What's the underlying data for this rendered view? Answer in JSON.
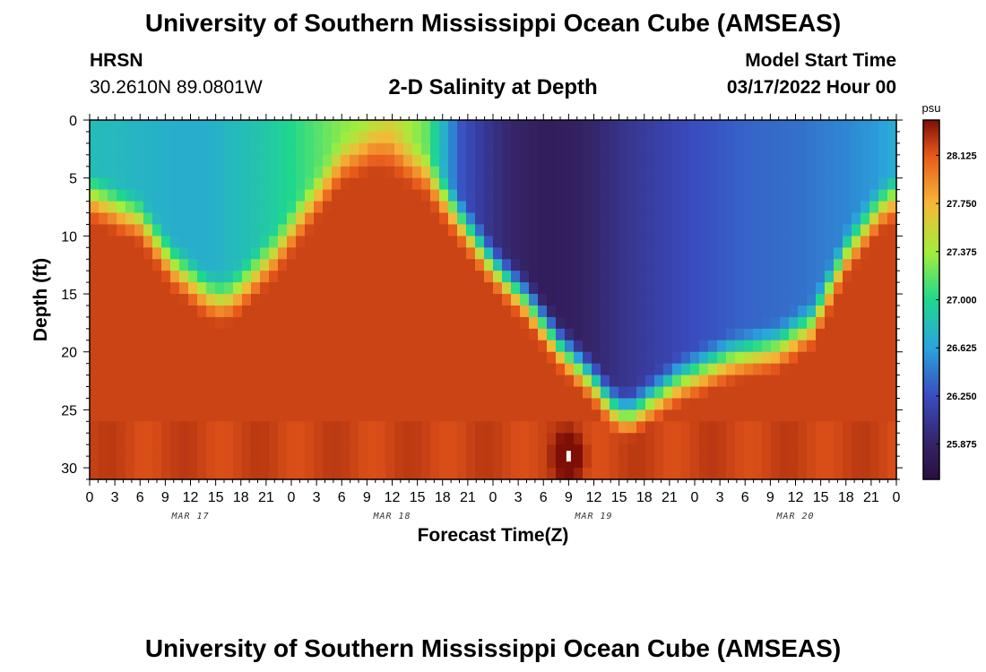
{
  "header": {
    "title": "University of Southern Mississippi Ocean Cube (AMSEAS)",
    "station": "HRSN",
    "coords": "30.2610N  89.0801W",
    "subtitle": "2-D Salinity at Depth",
    "model_start_label": "Model Start Time",
    "model_start_time": "03/17/2022 Hour 00"
  },
  "footer": {
    "title": "University of Southern Mississippi Ocean Cube (AMSEAS)"
  },
  "chart_data": {
    "type": "heatmap",
    "title": "2-D Salinity at Depth",
    "xlabel": "Forecast Time(Z)",
    "ylabel": "Depth (ft)",
    "x_hours_range": [
      0,
      96
    ],
    "y_range": [
      0,
      31
    ],
    "y_inverted": true,
    "x_tick_labels": [
      "0",
      "3",
      "6",
      "9",
      "12",
      "15",
      "18",
      "21",
      "0",
      "3",
      "6",
      "9",
      "12",
      "15",
      "18",
      "21",
      "0",
      "3",
      "6",
      "9",
      "12",
      "15",
      "18",
      "21",
      "0",
      "3",
      "6",
      "9",
      "12",
      "15",
      "18",
      "21",
      "0"
    ],
    "x_date_labels": [
      {
        "label": "MAR 17",
        "hour": 12
      },
      {
        "label": "MAR 18",
        "hour": 36
      },
      {
        "label": "MAR 19",
        "hour": 60
      },
      {
        "label": "MAR 20",
        "hour": 84
      }
    ],
    "y_ticks": [
      0,
      5,
      10,
      15,
      20,
      25,
      30
    ],
    "colorbar": {
      "unit": "psu",
      "min": 25.6,
      "max": 28.4,
      "ticks": [
        "25.875",
        "26.250",
        "26.625",
        "27.000",
        "27.375",
        "27.750",
        "28.125"
      ],
      "tick_values": [
        25.875,
        26.25,
        26.625,
        27.0,
        27.375,
        27.75,
        28.125
      ]
    },
    "color_scale": [
      {
        "v": 25.6,
        "c": "#2a0f3f"
      },
      {
        "v": 25.875,
        "c": "#352366"
      },
      {
        "v": 26.25,
        "c": "#3a4cc0"
      },
      {
        "v": 26.625,
        "c": "#2aa4dc"
      },
      {
        "v": 27.0,
        "c": "#1fd88e"
      },
      {
        "v": 27.375,
        "c": "#a4ee3c"
      },
      {
        "v": 27.75,
        "c": "#f6b737"
      },
      {
        "v": 28.125,
        "c": "#e8581b"
      },
      {
        "v": 28.4,
        "c": "#7d0f06"
      }
    ],
    "surface_salinity": {
      "hours": [
        0,
        5,
        10,
        14,
        16,
        20,
        24,
        30,
        34,
        36,
        40,
        44,
        48,
        50,
        54,
        58,
        60,
        64,
        68,
        72,
        78,
        84,
        90,
        94,
        96
      ],
      "values": [
        26.8,
        26.75,
        26.7,
        26.7,
        26.75,
        26.85,
        27.0,
        27.3,
        27.45,
        27.6,
        27.2,
        26.3,
        26.0,
        25.9,
        25.8,
        25.85,
        25.9,
        26.05,
        26.15,
        26.25,
        26.35,
        26.4,
        26.5,
        26.6,
        26.7
      ]
    },
    "mixed_layer_depth_ft": {
      "hours": [
        0,
        6,
        10,
        14,
        16,
        18,
        22,
        26,
        30,
        34,
        36,
        40,
        44,
        48,
        52,
        56,
        60,
        62,
        64,
        66,
        70,
        76,
        82,
        86,
        88,
        90,
        92,
        94,
        96
      ],
      "values": [
        6,
        8,
        12,
        14.5,
        15,
        14,
        11,
        7,
        3,
        1.5,
        2,
        4,
        8,
        12,
        15,
        19,
        22,
        24,
        25,
        24,
        22,
        20,
        19,
        17,
        14,
        11,
        9,
        7,
        6
      ]
    },
    "bottom_salinity": 28.2,
    "annotation": {
      "hour": 57,
      "depth_ft": 29
    }
  }
}
